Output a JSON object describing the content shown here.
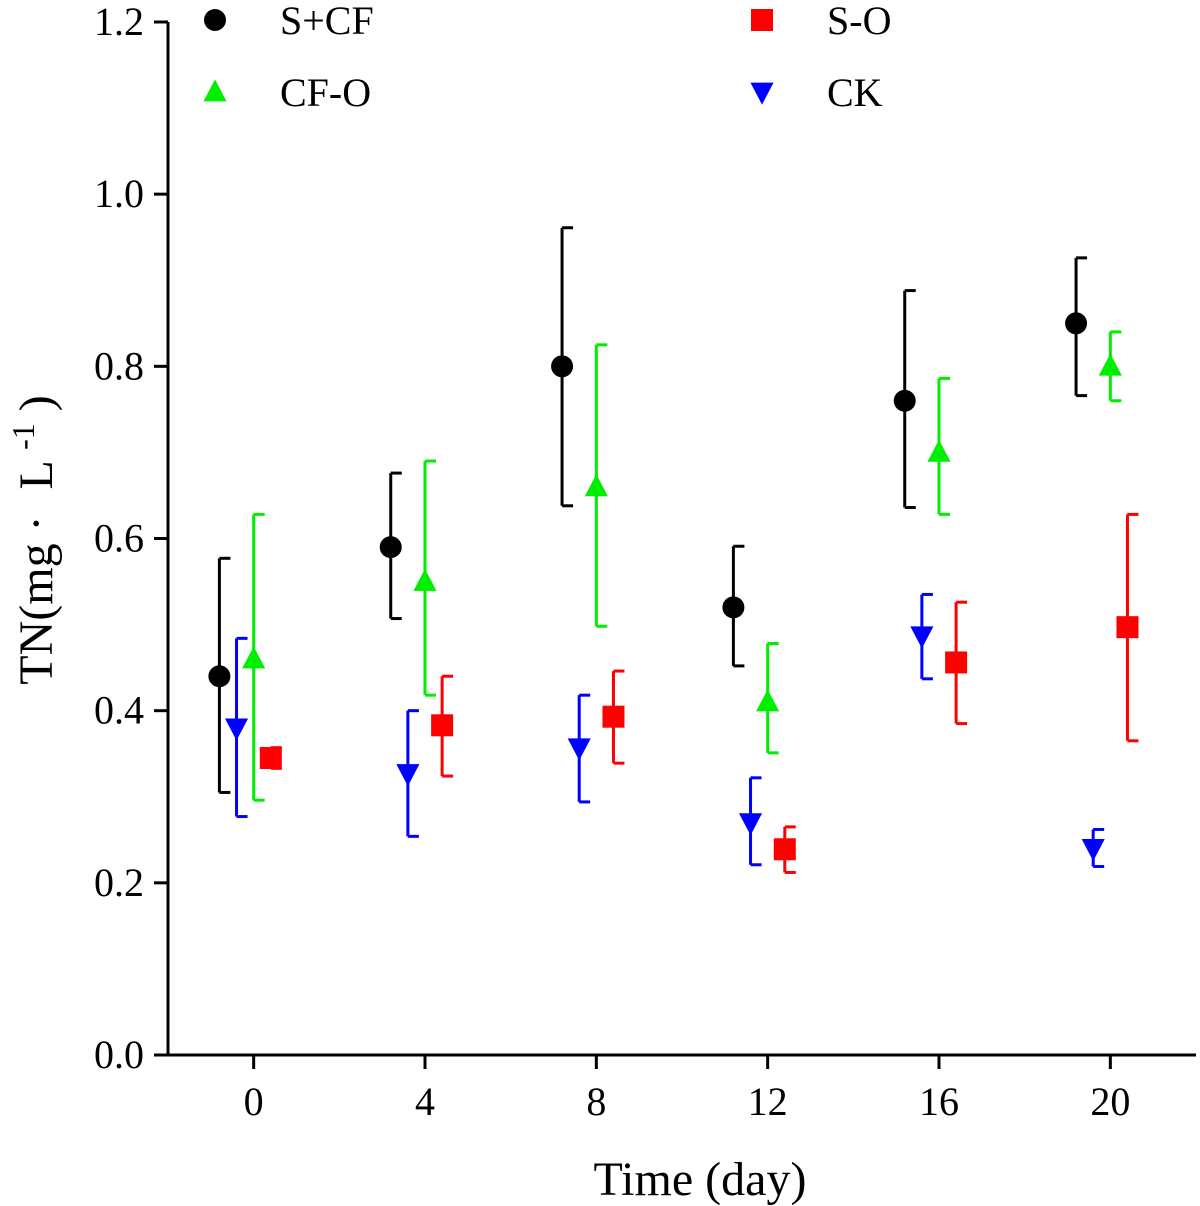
{
  "chart_data": {
    "type": "scatter",
    "title": "",
    "xlabel": "Time (day)",
    "ylabel": {
      "main": "TN(mg",
      "dot": "·",
      "unit": "L",
      "exponent": "-1",
      "close": ")"
    },
    "xlim": [
      -2,
      22
    ],
    "ylim": [
      0,
      1.2
    ],
    "x_ticks": [
      0,
      4,
      8,
      12,
      16,
      20
    ],
    "x_tick_labels": [
      "0",
      "4",
      "8",
      "12",
      "16",
      "20"
    ],
    "y_ticks": [
      0,
      0.2,
      0.4,
      0.6,
      0.8,
      1.0,
      1.2
    ],
    "y_tick_labels": [
      "0.0",
      "0.2",
      "0.4",
      "0.6",
      "0.8",
      "1.0",
      "1.2"
    ],
    "grid": false,
    "legend_position": "top",
    "series": [
      {
        "name": "S+CF",
        "marker": "circle",
        "color": "#000000",
        "offset": -0.8,
        "x": [
          0,
          4,
          8,
          12,
          16,
          20
        ],
        "y": [
          0.44,
          0.59,
          0.8,
          0.52,
          0.76,
          0.85
        ],
        "err_low": [
          0.305,
          0.507,
          0.638,
          0.452,
          0.636,
          0.766
        ],
        "err_high": [
          0.577,
          0.676,
          0.961,
          0.591,
          0.888,
          0.926
        ]
      },
      {
        "name": "S-O",
        "marker": "square",
        "color": "#ff0000",
        "offset": 0.4,
        "x": [
          0,
          4,
          8,
          12,
          16,
          20
        ],
        "y": [
          0.345,
          0.383,
          0.393,
          0.239,
          0.456,
          0.497
        ],
        "err_low": [
          0.333,
          0.324,
          0.339,
          0.212,
          0.385,
          0.365
        ],
        "err_high": [
          0.357,
          0.44,
          0.446,
          0.265,
          0.526,
          0.628
        ]
      },
      {
        "name": "CF-O",
        "marker": "triangle-up",
        "color": "#00ee00",
        "offset": 0,
        "x": [
          0,
          4,
          8,
          12,
          16,
          20
        ],
        "y": [
          0.46,
          0.55,
          0.66,
          0.41,
          0.7,
          0.8
        ],
        "err_low": [
          0.296,
          0.418,
          0.498,
          0.351,
          0.628,
          0.76
        ],
        "err_high": [
          0.628,
          0.69,
          0.825,
          0.478,
          0.786,
          0.84
        ]
      },
      {
        "name": "CK",
        "marker": "triangle-down",
        "color": "#0000ff",
        "offset": -0.4,
        "x": [
          0,
          4,
          8,
          12,
          16,
          20
        ],
        "y": [
          0.38,
          0.327,
          0.357,
          0.27,
          0.487,
          0.24
        ],
        "err_low": [
          0.277,
          0.254,
          0.294,
          0.221,
          0.437,
          0.219
        ],
        "err_high": [
          0.484,
          0.4,
          0.418,
          0.322,
          0.535,
          0.262
        ]
      }
    ]
  }
}
